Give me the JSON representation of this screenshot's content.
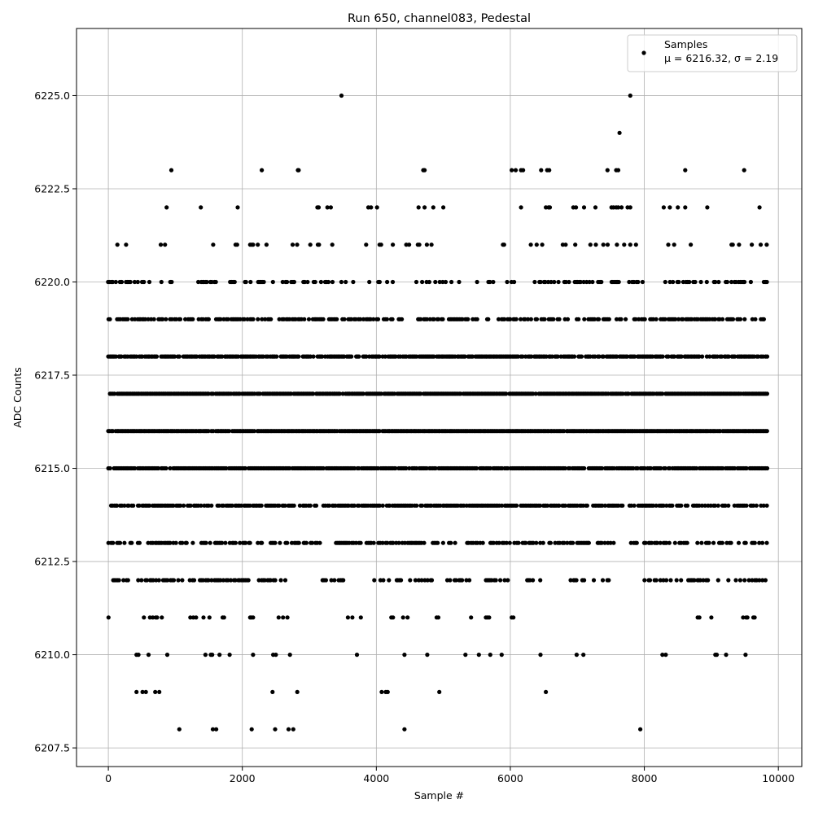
{
  "chart_data": {
    "type": "scatter",
    "title": "Run 650, channel083, Pedestal",
    "xlabel": "Sample #",
    "ylabel": "ADC Counts",
    "xlim": [
      -475,
      10350
    ],
    "ylim": [
      6207.0,
      6226.8
    ],
    "x_ticks": [
      0,
      2000,
      4000,
      6000,
      8000,
      10000
    ],
    "x_tick_labels": [
      "0",
      "2000",
      "4000",
      "6000",
      "8000",
      "10000"
    ],
    "y_ticks": [
      6207.5,
      6210.0,
      6212.5,
      6215.0,
      6217.5,
      6220.0,
      6222.5,
      6225.0
    ],
    "y_tick_labels": [
      "6207.5",
      "6210.0",
      "6212.5",
      "6215.0",
      "6217.5",
      "6220.0",
      "6222.5",
      "6225.0"
    ],
    "grid": true,
    "legend_position": "top-right",
    "marker_color": "#000000",
    "series": [
      {
        "name": "Samples",
        "stats_label": "μ = 6216.32, σ = 2.19",
        "n_samples": 9830,
        "levels": [
          {
            "y": 6225,
            "x": [
              3480,
              7790
            ]
          },
          {
            "y": 6224,
            "x": [
              7630
            ]
          },
          {
            "y": 6223,
            "x": [
              940,
              2290,
              2830,
              2840,
              4700,
              4720,
              6020,
              6080,
              6160,
              6190,
              6460,
              6550,
              6580,
              7450,
              7580,
              7610,
              8610,
              9490
            ]
          },
          {
            "y": 6222,
            "x": [
              870,
              1380,
              1930,
              3120,
              3140,
              3270,
              3320,
              3880,
              3920,
              4010,
              4630,
              4720,
              4850,
              5000,
              6160,
              6530,
              6570,
              6590,
              6940,
              6980,
              7100,
              7270,
              7510,
              7540,
              7580,
              7610,
              7660,
              7750,
              7790,
              8290,
              8380,
              8500,
              8610,
              8940,
              9720
            ]
          },
          {
            "y": 6221,
            "dense_ranges": [
              [
                0,
                300
              ],
              [
                780,
                960
              ],
              [
                1480,
                2500
              ],
              [
                2750,
                3500
              ],
              [
                3850,
                4500
              ],
              [
                4600,
                5000
              ],
              [
                5150,
                5250
              ],
              [
                5800,
                6400
              ],
              [
                6450,
                6950
              ],
              [
                6950,
                8050
              ],
              [
                8250,
                8700
              ],
              [
                9050,
                9150
              ],
              [
                9300,
                9840
              ]
            ],
            "density": 0.22
          },
          {
            "y": 6220,
            "dense_ranges": [
              [
                0,
                1000
              ],
              [
                1100,
                1700
              ],
              [
                1750,
                2500
              ],
              [
                2600,
                3700
              ],
              [
                3850,
                4400
              ],
              [
                4550,
                5250
              ],
              [
                5500,
                5800
              ],
              [
                5950,
                8050
              ],
              [
                8250,
                9250
              ],
              [
                9300,
                9840
              ]
            ],
            "density": 0.35
          },
          {
            "y": 6219,
            "dense_ranges": [
              [
                0,
                1100
              ],
              [
                1150,
                2450
              ],
              [
                2550,
                4400
              ],
              [
                4600,
                5550
              ],
              [
                5650,
                9840
              ]
            ],
            "density": 0.6
          },
          {
            "y": 6218,
            "dense_ranges": [
              [
                0,
                9840
              ]
            ],
            "density": 0.8
          },
          {
            "y": 6217,
            "dense_ranges": [
              [
                0,
                9840
              ]
            ],
            "density": 0.95
          },
          {
            "y": 6216,
            "dense_ranges": [
              [
                0,
                9840
              ]
            ],
            "density": 0.98
          },
          {
            "y": 6215,
            "dense_ranges": [
              [
                0,
                9840
              ]
            ],
            "density": 0.92
          },
          {
            "y": 6214,
            "dense_ranges": [
              [
                0,
                7720
              ],
              [
                7760,
                9840
              ]
            ],
            "density": 0.75
          },
          {
            "y": 6213,
            "dense_ranges": [
              [
                0,
                1100
              ],
              [
                1150,
                2600
              ],
              [
                2650,
                3200
              ],
              [
                3350,
                6400
              ],
              [
                6450,
                7200
              ],
              [
                7300,
                7550
              ],
              [
                7800,
                9840
              ]
            ],
            "density": 0.55
          },
          {
            "y": 6212,
            "dense_ranges": [
              [
                50,
                1300
              ],
              [
                1300,
                2800
              ],
              [
                3200,
                3700
              ],
              [
                3950,
                4900
              ],
              [
                4950,
                6000
              ],
              [
                6250,
                6450
              ],
              [
                6900,
                7100
              ],
              [
                7250,
                7550
              ],
              [
                8000,
                9840
              ]
            ],
            "density": 0.38
          },
          {
            "y": 6211,
            "dense_ranges": [
              [
                0,
                100
              ],
              [
                400,
                900
              ],
              [
                1200,
                1750
              ],
              [
                2050,
                2200
              ],
              [
                2450,
                2800
              ],
              [
                3550,
                3800
              ],
              [
                4050,
                4500
              ],
              [
                4900,
                5050
              ],
              [
                5350,
                5700
              ],
              [
                6000,
                6050
              ],
              [
                8800,
                9000
              ],
              [
                9200,
                9300
              ],
              [
                9450,
                9700
              ]
            ],
            "density": 0.25
          },
          {
            "y": 6210,
            "x": [
              420,
              450,
              600,
              880,
              1450,
              1530,
              1550,
              1660,
              1810,
              2160,
              2460,
              2500,
              2710,
              3710,
              4420,
              4760,
              5330,
              5530,
              5700,
              5870,
              6450,
              6990,
              7090,
              8270,
              8320,
              9060,
              9080,
              9220,
              9510
            ]
          },
          {
            "y": 6209,
            "x": [
              420,
              510,
              560,
              700,
              760,
              2450,
              2820,
              4080,
              4140,
              4170,
              4940,
              6530
            ]
          },
          {
            "y": 6208,
            "x": [
              1060,
              1560,
              1610,
              2140,
              2490,
              2690,
              2760,
              4420,
              7940
            ]
          }
        ]
      }
    ]
  }
}
